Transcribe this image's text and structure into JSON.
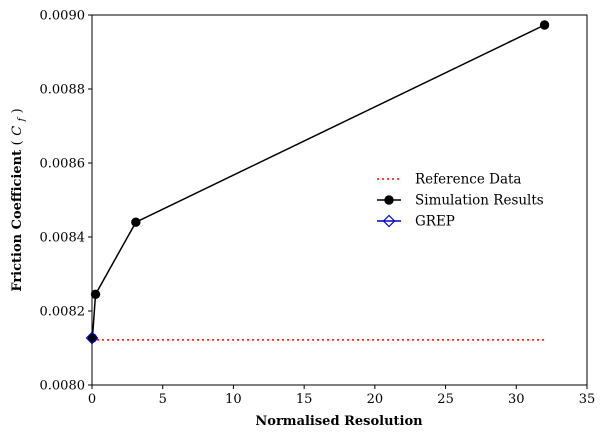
{
  "chart_data": {
    "type": "line",
    "title": "",
    "xlabel": "Normalised Resolution",
    "ylabel_main": "Friction Coefficient ",
    "ylabel_symbol": "C",
    "ylabel_subscript": "f",
    "ylabel_open": "(",
    "ylabel_close": ")",
    "xlim": [
      0,
      35
    ],
    "ylim": [
      0.008,
      0.009
    ],
    "xticks": [
      0,
      5,
      10,
      15,
      20,
      25,
      30,
      35
    ],
    "xtick_labels": [
      "0",
      "5",
      "10",
      "15",
      "20",
      "25",
      "30",
      "35"
    ],
    "yticks": [
      0.008,
      0.0082,
      0.0084,
      0.0086,
      0.0088,
      0.009
    ],
    "ytick_labels": [
      "0.0080",
      "0.0082",
      "0.0084",
      "0.0086",
      "0.0088",
      "0.0090"
    ],
    "grid": false,
    "legend_position": "center-right",
    "series": [
      {
        "name": "Reference Data",
        "style": "dotted",
        "color": "#ff0000",
        "marker": "none",
        "x": [
          0,
          32
        ],
        "y": [
          0.008122,
          0.008122
        ]
      },
      {
        "name": "Simulation Results",
        "style": "solid",
        "color": "#000000",
        "marker": "circle",
        "x": [
          0.03,
          0.25,
          3.1,
          32
        ],
        "y": [
          0.008127,
          0.008245,
          0.00844,
          0.008973
        ]
      },
      {
        "name": "GREP",
        "style": "solid",
        "color": "#0000cc",
        "marker": "diamond",
        "x": [
          0
        ],
        "y": [
          0.008127
        ]
      }
    ]
  }
}
